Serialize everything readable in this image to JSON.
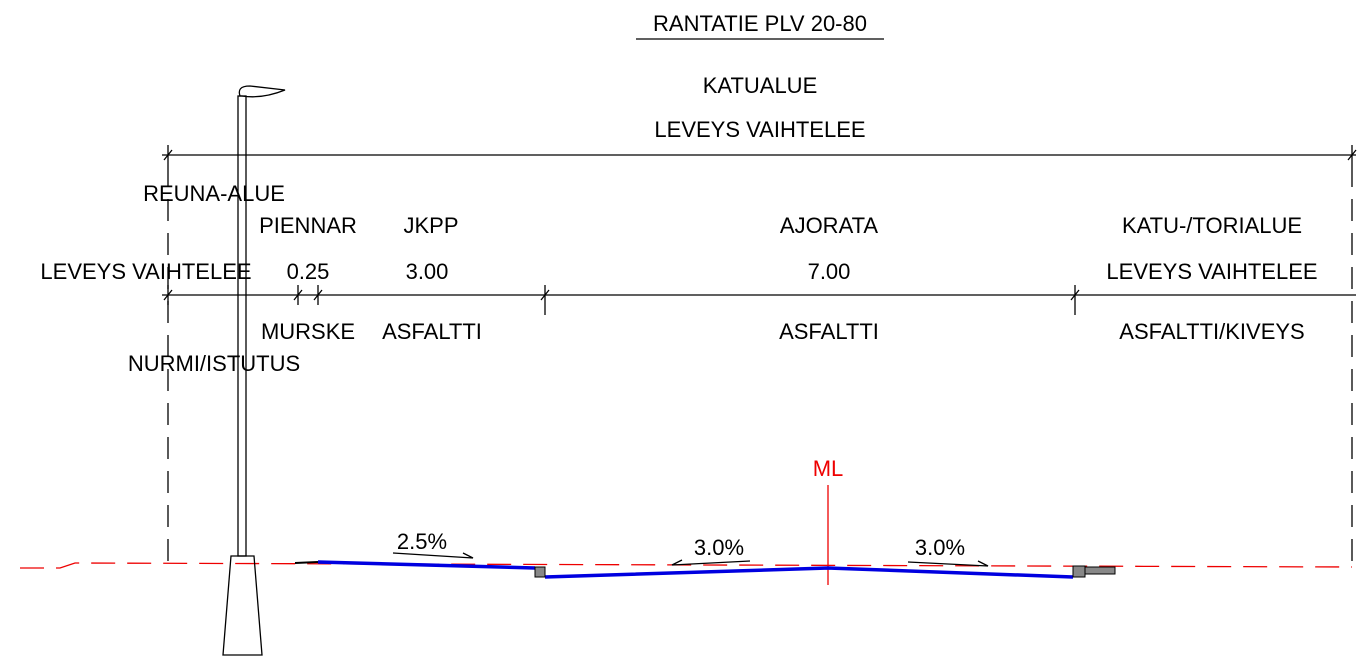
{
  "title": "RANTATIE PLV 20-80",
  "overall": {
    "name": "KATUALUE",
    "width": "LEVEYS VAIHTELEE"
  },
  "sections": [
    {
      "name": "REUNA-ALUE",
      "width": "LEVEYS VAIHTELEE",
      "material": "NURMI/ISTUTUS"
    },
    {
      "name": "PIENNAR",
      "width": "0.25",
      "material": "MURSKE"
    },
    {
      "name": "JKPP",
      "width": "3.00",
      "material": "ASFALTTI"
    },
    {
      "name": "AJORATA",
      "width": "7.00",
      "material": "ASFALTTI"
    },
    {
      "name": "KATU-/TORIALUE",
      "width": "LEVEYS VAIHTELEE",
      "material": "ASFALTTI/KIVEYS"
    }
  ],
  "slopes": [
    "2.5%",
    "3.0%",
    "3.0%"
  ],
  "centerline": "ML"
}
